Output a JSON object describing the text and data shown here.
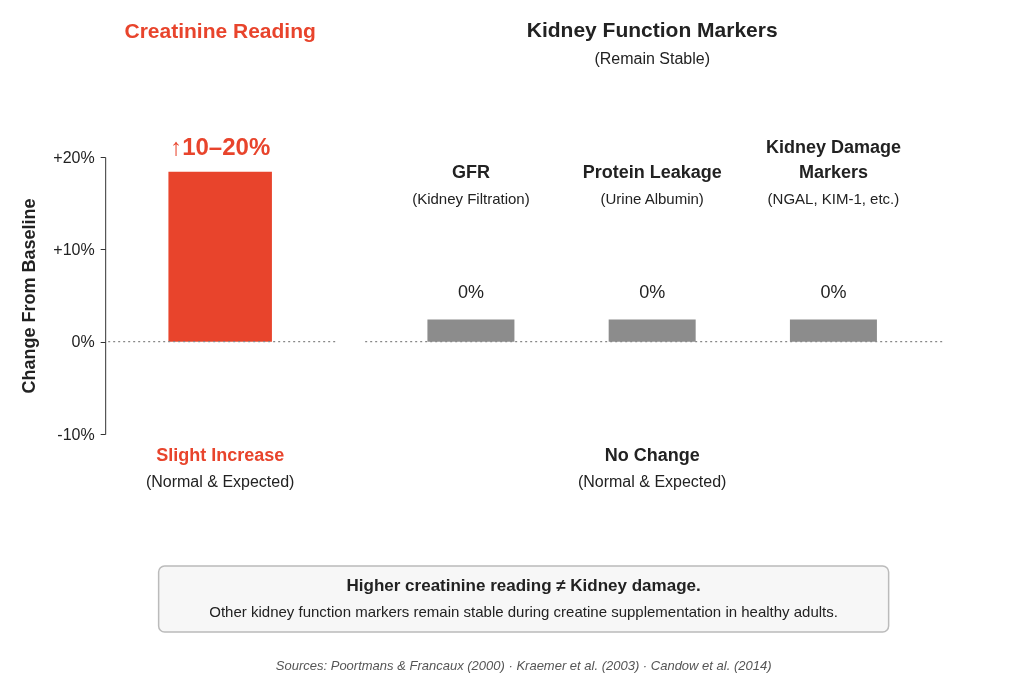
{
  "chart_data": [
    {
      "type": "bar",
      "title": "Creatinine Reading",
      "ylabel": "Change From Baseline",
      "categories": [
        null
      ],
      "values": [
        18.4
      ],
      "color": "#e8442c",
      "ylim": [
        -10,
        20
      ],
      "yticks": [
        {
          "value": 20,
          "label": "+20%"
        },
        {
          "value": 10,
          "label": "+10%"
        },
        {
          "value": 0,
          "label": "0%"
        },
        {
          "value": -10,
          "label": "-10%"
        }
      ],
      "ref_lines": [
        {
          "axis": "y",
          "value": 0,
          "color": "#888888",
          "line_style": "dotted"
        }
      ],
      "annotations": [
        "↑10–20%",
        "Slight Increase",
        "(Normal & Expected)"
      ]
    },
    {
      "type": "bar",
      "title": "Kidney Function Markers",
      "subtitle": "(Remain Stable)",
      "categories": [
        "GFR",
        "Protein Leakage",
        "Kidney Damage Markers"
      ],
      "values": [
        2.4,
        2.4,
        2.4
      ],
      "color": "#8c8c8c",
      "ylim": [
        -10,
        20
      ],
      "tick_labels": false,
      "ref_lines": [
        {
          "axis": "y",
          "value": 0,
          "color": "#888888",
          "line_style": "dotted"
        }
      ],
      "annotations": [
        "(Kidney Filtration)",
        "(Urine Albumin)",
        "(NGAL, KIM-1, etc.)",
        "0%",
        "0%",
        "0%",
        "No Change",
        "(Normal & Expected)"
      ]
    },
    {
      "type": "other",
      "annotations": [
        "Higher creatinine reading ≠ Kidney damage.",
        "Other kidney function markers remain stable during creatine supplementation in healthy adults.",
        "Sources: Poortmans & Francaux (2000) · Kraemer et al. (2003) · Candow et al. (2014)"
      ]
    }
  ]
}
